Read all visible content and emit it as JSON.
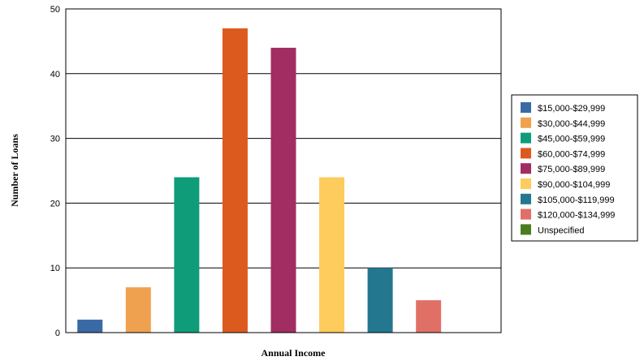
{
  "chart_data": {
    "type": "bar",
    "title": "",
    "xlabel": "Annual Income",
    "ylabel": "Number of Loans",
    "ylim": [
      0,
      50
    ],
    "yticks": [
      0,
      10,
      20,
      30,
      40,
      50
    ],
    "grid": true,
    "legend_position": "right",
    "categories": [
      "$15,000-$29,999",
      "$30,000-$44,999",
      "$45,000-$59,999",
      "$60,000-$74,999",
      "$75,000-$89,999",
      "$90,000-$104,999",
      "$105,000-$119,999",
      "$120,000-$134,999",
      "Unspecified"
    ],
    "values": [
      2,
      7,
      24,
      47,
      44,
      24,
      10,
      5,
      0
    ],
    "colors": [
      "#3a6aa5",
      "#f0a150",
      "#0e9c79",
      "#dd5a1e",
      "#a12d62",
      "#fecc5c",
      "#23788f",
      "#e07066",
      "#4a7d20"
    ]
  }
}
